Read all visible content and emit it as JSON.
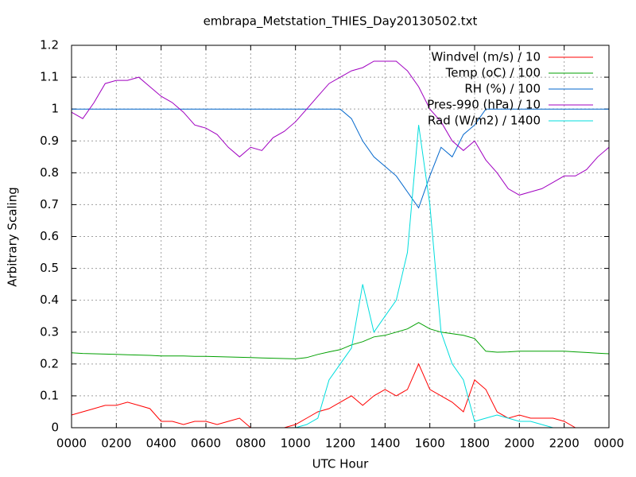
{
  "chart_data": {
    "type": "line",
    "title": "embrapa_Metstation_THIES_Day20130502.txt",
    "xlabel": "UTC Hour",
    "ylabel": "Arbitrary Scaling",
    "x": [
      0,
      0.5,
      1,
      1.5,
      2,
      2.5,
      3,
      3.5,
      4,
      4.5,
      5,
      5.5,
      6,
      6.5,
      7,
      7.5,
      8,
      8.5,
      9,
      9.5,
      10,
      10.5,
      11,
      11.5,
      12,
      12.5,
      13,
      13.5,
      14,
      14.5,
      15,
      15.5,
      16,
      16.5,
      17,
      17.5,
      18,
      18.5,
      19,
      19.5,
      20,
      20.5,
      21,
      21.5,
      22,
      22.5,
      23,
      23.5,
      24
    ],
    "series": [
      {
        "name": "Windvel (m/s) / 10",
        "color": "#ff0000",
        "values": [
          0.04,
          0.05,
          0.06,
          0.07,
          0.07,
          0.08,
          0.07,
          0.06,
          0.02,
          0.02,
          0.01,
          0.02,
          0.02,
          0.01,
          0.02,
          0.03,
          0,
          0,
          0,
          0,
          0.01,
          0.03,
          0.05,
          0.06,
          0.08,
          0.1,
          0.07,
          0.1,
          0.12,
          0.1,
          0.12,
          0.2,
          0.12,
          0.1,
          0.08,
          0.05,
          0.15,
          0.12,
          0.05,
          0.03,
          0.04,
          0.03,
          0.03,
          0.03,
          0.02,
          0,
          0,
          0,
          0
        ]
      },
      {
        "name": "Temp (oC) / 100",
        "color": "#00a000",
        "values": [
          0.235,
          0.233,
          0.232,
          0.231,
          0.23,
          0.229,
          0.228,
          0.227,
          0.225,
          0.225,
          0.225,
          0.224,
          0.224,
          0.223,
          0.222,
          0.221,
          0.22,
          0.219,
          0.218,
          0.217,
          0.216,
          0.22,
          0.23,
          0.238,
          0.245,
          0.26,
          0.27,
          0.285,
          0.29,
          0.3,
          0.31,
          0.33,
          0.31,
          0.3,
          0.295,
          0.29,
          0.28,
          0.24,
          0.237,
          0.238,
          0.24,
          0.24,
          0.24,
          0.24,
          0.24,
          0.238,
          0.236,
          0.234,
          0.232
        ]
      },
      {
        "name": "RH (%) / 100",
        "color": "#0066cc",
        "values": [
          1,
          1,
          1,
          1,
          1,
          1,
          1,
          1,
          1,
          1,
          1,
          1,
          1,
          1,
          1,
          1,
          1,
          1,
          1,
          1,
          1,
          1,
          1,
          1,
          1,
          0.97,
          0.9,
          0.85,
          0.82,
          0.79,
          0.74,
          0.69,
          0.79,
          0.88,
          0.85,
          0.92,
          0.95,
          1,
          1,
          1,
          1,
          1,
          1,
          1,
          1,
          1,
          1,
          1,
          1
        ]
      },
      {
        "name": "Pres-990 (hPa) / 10",
        "color": "#a000c0",
        "values": [
          0.99,
          0.97,
          1.02,
          1.08,
          1.09,
          1.09,
          1.1,
          1.07,
          1.04,
          1.02,
          0.99,
          0.95,
          0.94,
          0.92,
          0.88,
          0.85,
          0.88,
          0.87,
          0.91,
          0.93,
          0.96,
          1.0,
          1.04,
          1.08,
          1.1,
          1.12,
          1.13,
          1.15,
          1.15,
          1.15,
          1.12,
          1.07,
          1.0,
          0.96,
          0.9,
          0.87,
          0.9,
          0.84,
          0.8,
          0.75,
          0.73,
          0.74,
          0.75,
          0.77,
          0.79,
          0.79,
          0.81,
          0.85,
          0.88
        ]
      },
      {
        "name": "Rad (W/m2) / 1400",
        "color": "#00dddd",
        "values": [
          0,
          0,
          0,
          0,
          0,
          0,
          0,
          0,
          0,
          0,
          0,
          0,
          0,
          0,
          0,
          0,
          0,
          0,
          0,
          0,
          0,
          0.01,
          0.03,
          0.15,
          0.2,
          0.25,
          0.45,
          0.3,
          0.35,
          0.4,
          0.55,
          0.95,
          0.7,
          0.3,
          0.2,
          0.15,
          0.02,
          0.03,
          0.04,
          0.03,
          0.02,
          0.02,
          0.01,
          0,
          0,
          0,
          0,
          0,
          0
        ]
      }
    ],
    "xlim": [
      0,
      24
    ],
    "xticks": [
      {
        "value": 0,
        "label": "0000"
      },
      {
        "value": 2,
        "label": "0200"
      },
      {
        "value": 4,
        "label": "0400"
      },
      {
        "value": 6,
        "label": "0600"
      },
      {
        "value": 8,
        "label": "0800"
      },
      {
        "value": 10,
        "label": "1000"
      },
      {
        "value": 12,
        "label": "1200"
      },
      {
        "value": 14,
        "label": "1400"
      },
      {
        "value": 16,
        "label": "1600"
      },
      {
        "value": 18,
        "label": "1800"
      },
      {
        "value": 20,
        "label": "2000"
      },
      {
        "value": 22,
        "label": "2200"
      },
      {
        "value": 24,
        "label": "0000"
      }
    ],
    "ylim": [
      0,
      1.2
    ],
    "yticks": [
      0,
      0.1,
      0.2,
      0.3,
      0.4,
      0.5,
      0.6,
      0.7,
      0.8,
      0.9,
      1,
      1.1,
      1.2
    ],
    "grid": true,
    "legend": "top-right"
  }
}
